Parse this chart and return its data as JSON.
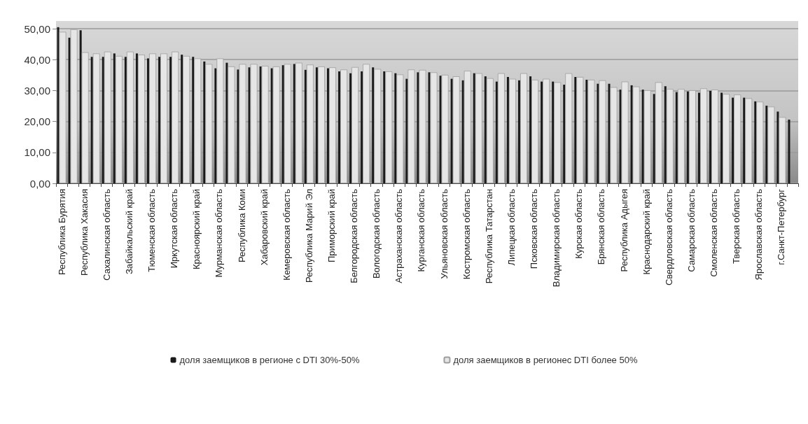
{
  "chart_data": {
    "type": "bar",
    "categories": [
      "Республика Бурятия",
      null,
      "Республика Хакасия",
      null,
      "Сахалинская область",
      null,
      "Забайкальский край",
      null,
      "Тюменская область",
      null,
      "Иркутская область",
      null,
      "Красноярский край",
      null,
      "Мурманская область",
      null,
      "Республика Коми",
      null,
      "Хабаровский край",
      null,
      "Кемеровская область",
      null,
      "Республика Марий Эл",
      null,
      "Приморский край",
      null,
      "Белгородская область",
      null,
      "Вологодская область",
      null,
      "Астраханская область",
      null,
      "Курганская область",
      null,
      "Ульяновская область",
      null,
      "Костромская область",
      null,
      "Республика Татарстан",
      null,
      "Липецкая область",
      null,
      "Псковская область",
      null,
      "Владимирская область",
      null,
      "Курская область",
      null,
      "Брянская область",
      null,
      "Республика Адыгея",
      null,
      "Краснодарский край",
      null,
      "Свердловская область",
      null,
      "Самарская область",
      null,
      "Смоленская область",
      null,
      "Тверская область",
      null,
      "Ярославская область",
      null,
      "г.Санкт-Петербург",
      null
    ],
    "series": [
      {
        "name": "доля заемщиков в регионе с DTI 30%-50%",
        "color": "#1a1a1a",
        "values": [
          50.5,
          47.1,
          49.5,
          40.9,
          40.9,
          42.0,
          40.9,
          42.0,
          40.4,
          40.9,
          40.9,
          41.6,
          40.9,
          39.4,
          37.2,
          39.0,
          36.8,
          37.5,
          37.8,
          37.2,
          38.2,
          38.6,
          36.7,
          37.5,
          37.2,
          36.2,
          35.6,
          36.2,
          37.5,
          36.2,
          35.6,
          33.8,
          35.9,
          35.9,
          34.8,
          33.8,
          33.3,
          35.6,
          34.6,
          32.9,
          34.4,
          33.3,
          34.6,
          32.9,
          32.9,
          31.9,
          34.4,
          33.5,
          32.2,
          32.2,
          30.3,
          31.7,
          30.3,
          28.9,
          31.4,
          29.5,
          29.7,
          29.3,
          29.9,
          29.3,
          27.7,
          27.7,
          26.5,
          25.1,
          23.2,
          20.6
        ]
      },
      {
        "name": "доля заемщиков в регионес DTI более 50%",
        "color": "#e6e6e6",
        "values": [
          49.0,
          49.8,
          42.4,
          42.0,
          42.6,
          41.2,
          42.6,
          41.6,
          42.0,
          42.0,
          42.6,
          41.2,
          40.4,
          38.6,
          40.4,
          37.8,
          38.6,
          38.6,
          38.0,
          37.8,
          38.6,
          39.0,
          38.4,
          37.8,
          37.5,
          36.8,
          37.6,
          38.6,
          37.0,
          36.2,
          35.2,
          36.8,
          36.7,
          35.9,
          35.1,
          34.6,
          36.4,
          35.6,
          34.0,
          35.6,
          33.8,
          35.6,
          33.5,
          33.8,
          32.7,
          35.6,
          34.4,
          33.5,
          33.3,
          31.1,
          32.9,
          31.3,
          30.1,
          32.7,
          30.5,
          30.5,
          30.1,
          30.7,
          30.3,
          28.9,
          28.7,
          27.5,
          26.4,
          24.8,
          21.4,
          null
        ]
      }
    ],
    "ylim": [
      0,
      52.5
    ],
    "yticks": [
      {
        "value": 0,
        "label": "0,00"
      },
      {
        "value": 10,
        "label": "10,00"
      },
      {
        "value": 20,
        "label": "20,00"
      },
      {
        "value": 30,
        "label": "30,00"
      },
      {
        "value": 40,
        "label": "40,00"
      },
      {
        "value": 50,
        "label": "50,00"
      }
    ],
    "grid": "y",
    "legend": "bottom"
  }
}
